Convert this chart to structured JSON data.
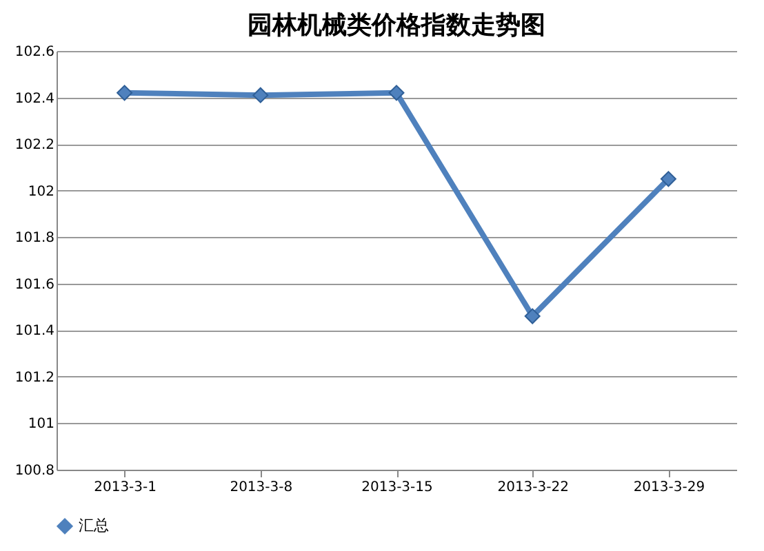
{
  "chart_data": {
    "type": "line",
    "title": "园林机械类价格指数走势图",
    "categories": [
      "2013-3-1",
      "2013-3-8",
      "2013-3-15",
      "2013-3-22",
      "2013-3-29"
    ],
    "series": [
      {
        "name": "汇总",
        "color": "#4f81bd",
        "values": [
          102.42,
          102.41,
          102.42,
          101.46,
          102.05
        ]
      }
    ],
    "ylim": [
      100.8,
      102.6
    ],
    "yticks": [
      100.8,
      101,
      101.2,
      101.4,
      101.6,
      101.8,
      102,
      102.2,
      102.4,
      102.6
    ],
    "grid": "y",
    "legend": "bottom",
    "marker": "diamond",
    "line_style": "solid"
  }
}
